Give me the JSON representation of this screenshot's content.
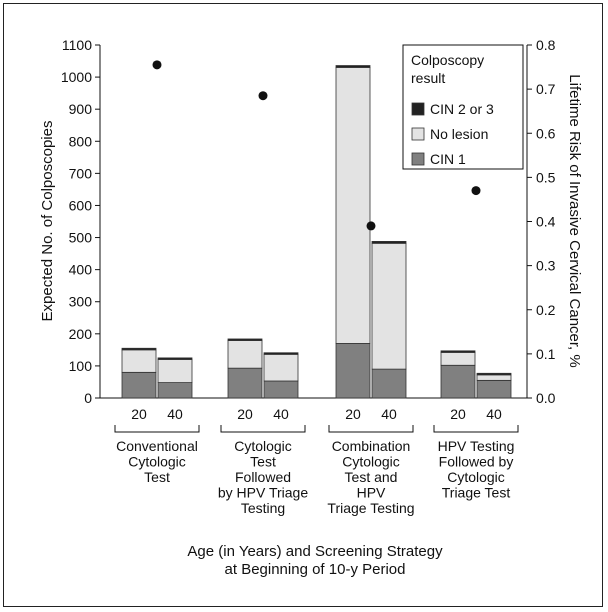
{
  "chart_data": {
    "type": "bar",
    "subtype": "stacked-bar-with-dual-axis-scatter",
    "x_label": "Age (in Years) and Screening Strategy at Beginning of 10-y Period",
    "x_label_lines": [
      "Age (in Years) and Screening Strategy",
      "at Beginning of 10-y Period"
    ],
    "y_left_label": "Expected No. of Colposcopies",
    "y_right_label": "Lifetime Risk of Invasive Cervical Cancer, %",
    "y_left_lim": [
      0,
      1100
    ],
    "y_left_ticks": [
      "0",
      "100",
      "200",
      "300",
      "400",
      "500",
      "600",
      "700",
      "800",
      "900",
      "1000",
      "1100"
    ],
    "y_right_lim": [
      0,
      0.8
    ],
    "y_right_ticks": [
      "0.0",
      "0.1",
      "0.2",
      "0.3",
      "0.4",
      "0.5",
      "0.6",
      "0.7",
      "0.8"
    ],
    "grid": false,
    "legend_position": "top-right",
    "legend_title": [
      "Colposcopy",
      "result"
    ],
    "series": [
      {
        "name": "CIN 2 or 3",
        "color": "#222222",
        "values": [
          5,
          5,
          5,
          5,
          6,
          6,
          5,
          5
        ]
      },
      {
        "name": "No lesion",
        "color": "#e3e3e3",
        "values": [
          70,
          72,
          86,
          83,
          860,
          392,
          40,
          17
        ]
      },
      {
        "name": "CIN 1",
        "color": "#808080",
        "values": [
          80,
          48,
          93,
          53,
          170,
          90,
          102,
          55
        ]
      }
    ],
    "legend_order": [
      "CIN 2 or 3",
      "No lesion",
      "CIN 1"
    ],
    "categories": [
      "Conventional 20",
      "Conventional 40",
      "Cytologic+HPV triage 20",
      "Cytologic+HPV triage 40",
      "Combination 20",
      "Combination 40",
      "HPV+Cytologic triage 20",
      "HPV+Cytologic triage 40"
    ],
    "groups": [
      {
        "label_lines": [
          "Conventional",
          "Cytologic",
          "Test"
        ],
        "ages": [
          "20",
          "40"
        ]
      },
      {
        "label_lines": [
          "Cytologic",
          "Test",
          "Followed",
          "by HPV Triage",
          "Testing"
        ],
        "ages": [
          "20",
          "40"
        ]
      },
      {
        "label_lines": [
          "Combination",
          "Cytologic",
          "Test and",
          "HPV",
          "Triage Testing"
        ],
        "ages": [
          "20",
          "40"
        ]
      },
      {
        "label_lines": [
          "HPV Testing",
          "Followed by",
          "Cytologic",
          "Triage Test"
        ],
        "ages": [
          "20",
          "40"
        ]
      }
    ],
    "risk_points": [
      {
        "group": 0,
        "value": 0.755
      },
      {
        "group": 1,
        "value": 0.685
      },
      {
        "group": 2,
        "value": 0.39
      },
      {
        "group": 3,
        "value": 0.47
      }
    ]
  }
}
